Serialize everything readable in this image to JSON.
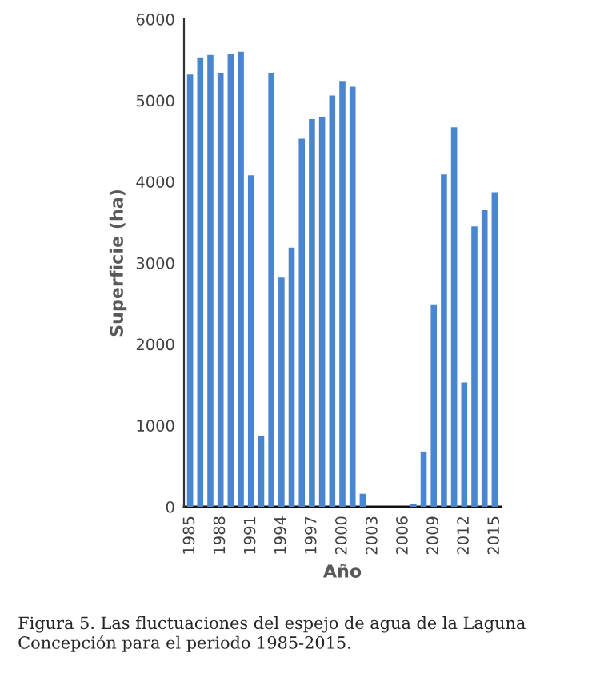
{
  "chart_data": {
    "type": "bar",
    "xlabel": "Año",
    "ylabel": "Superficie (ha)",
    "categories": [
      "1985",
      null,
      null,
      "1988",
      null,
      null,
      "1991",
      null,
      null,
      "1994",
      null,
      null,
      "1997",
      null,
      null,
      "2000",
      null,
      null,
      "2003",
      null,
      null,
      "2006",
      null,
      null,
      "2009",
      null,
      null,
      "2012",
      null,
      null,
      "2015"
    ],
    "values": [
      5320,
      5530,
      5560,
      5340,
      5570,
      5600,
      4080,
      870,
      5340,
      2820,
      3190,
      4530,
      4770,
      4800,
      5060,
      5240,
      5170,
      160,
      null,
      null,
      null,
      null,
      30,
      680,
      2490,
      4090,
      4670,
      1530,
      3450,
      3650,
      3870
    ],
    "color": "#4a86d0",
    "ylim": [
      0,
      6000
    ],
    "yticks": [
      0,
      1000,
      2000,
      3000,
      4000,
      5000,
      6000
    ],
    "grid": false,
    "legend": false,
    "annotations": [
      "Figura 5. Las fluctuaciones del espejo de agua de la Laguna Concepción para el periodo 1985-2015."
    ]
  }
}
